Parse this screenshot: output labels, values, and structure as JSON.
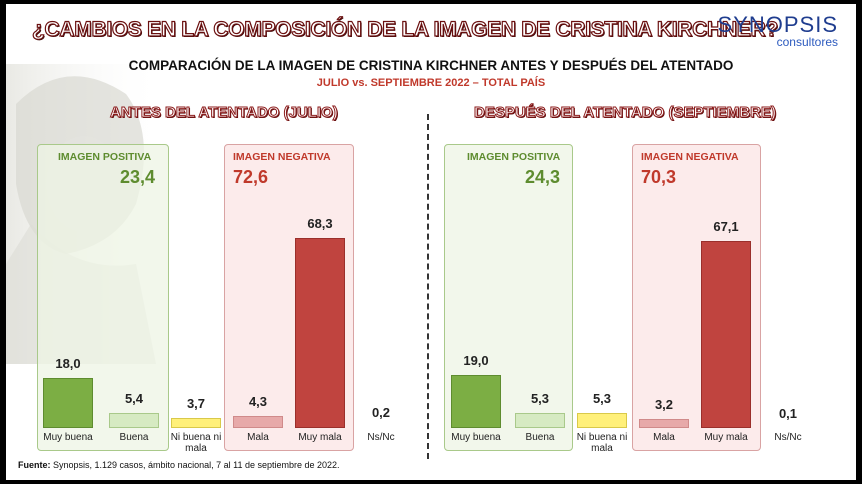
{
  "title": "¿CAMBIOS EN LA COMPOSICIÓN DE LA IMAGEN DE CRISTINA KIRCHNER?",
  "logo": {
    "name": "SYNOPSIS",
    "sub": "consultores"
  },
  "subtitle": "COMPARACIÓN DE LA IMAGEN DE CRISTINA KIRCHNER ANTES Y DESPUÉS DEL ATENTADO",
  "subtitle2": "JULIO vs. SEPTIEMBRE 2022 – TOTAL PAÍS",
  "footer": {
    "label": "Fuente:",
    "text": " Synopsis, 1.129 casos, ámbito nacional, 7 al 11 de septiembre de 2022."
  },
  "colors": {
    "muy_buena": "#7cae44",
    "buena": "#d6eac2",
    "ni": "#fff07a",
    "mala": "#e7a9a9",
    "muy_mala": "#c0443f"
  },
  "chart_data": [
    {
      "type": "bar",
      "title": "ANTES DEL ATENTADO (JULIO)",
      "positive": {
        "label": "IMAGEN POSITIVA",
        "value": "23,4"
      },
      "negative": {
        "label": "IMAGEN NEGATIVA",
        "value": "72,6"
      },
      "categories": [
        "Muy buena",
        "Buena",
        "Ni buena ni mala",
        "Mala",
        "Muy mala",
        "Ns/Nc"
      ],
      "values": [
        18.0,
        5.4,
        3.7,
        4.3,
        68.3,
        0.2
      ],
      "value_labels": [
        "18,0",
        "5,4",
        "3,7",
        "4,3",
        "68,3",
        "0,2"
      ]
    },
    {
      "type": "bar",
      "title": "DESPUÉS DEL ATENTADO (SEPTIEMBRE)",
      "positive": {
        "label": "IMAGEN POSITIVA",
        "value": "24,3"
      },
      "negative": {
        "label": "IMAGEN NEGATIVA",
        "value": "70,3"
      },
      "categories": [
        "Muy buena",
        "Buena",
        "Ni buena ni mala",
        "Mala",
        "Muy mala",
        "Ns/Nc"
      ],
      "values": [
        19.0,
        5.3,
        5.3,
        3.2,
        67.1,
        0.1
      ],
      "value_labels": [
        "19,0",
        "5,3",
        "5,3",
        "3,2",
        "67,1",
        "0,1"
      ]
    }
  ]
}
